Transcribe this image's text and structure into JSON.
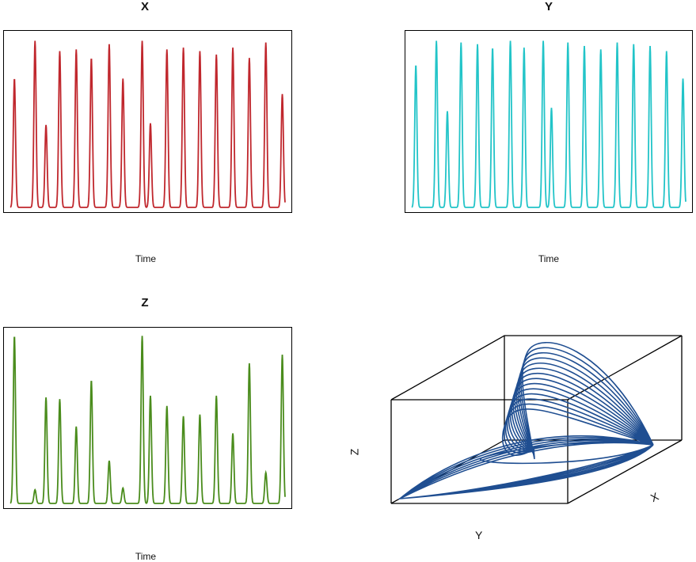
{
  "panels": {
    "x": {
      "title": "X",
      "xlabel": "Time",
      "color": "#c0272d"
    },
    "y": {
      "title": "Y",
      "xlabel": "Time",
      "color": "#22c4c8"
    },
    "z": {
      "title": "Z",
      "xlabel": "Time",
      "color": "#4a8c1c"
    },
    "phase": {
      "xlabel": "X",
      "ylabel": "Y",
      "zlabel": "Z",
      "color": "#1f4e91"
    }
  },
  "chart_data": [
    {
      "type": "line",
      "title": "X",
      "xlabel": "Time",
      "ylabel": "",
      "series": [
        {
          "values": [
            0.75,
            0.97,
            0.48,
            0.91,
            0.92,
            0.87,
            0.95,
            0.75,
            0.97,
            0.49,
            0.92,
            0.93,
            0.91,
            0.89,
            0.93,
            0.87,
            0.96,
            0.66
          ]
        }
      ],
      "peak_times": [
        0.015,
        0.09,
        0.13,
        0.18,
        0.24,
        0.295,
        0.36,
        0.41,
        0.48,
        0.51,
        0.57,
        0.63,
        0.69,
        0.75,
        0.81,
        0.87,
        0.93,
        0.99
      ],
      "ylim": [
        0,
        1
      ]
    },
    {
      "type": "line",
      "title": "Y",
      "xlabel": "Time",
      "ylabel": "",
      "series": [
        {
          "values": [
            0.83,
            0.97,
            0.56,
            0.96,
            0.95,
            0.93,
            0.97,
            0.93,
            0.97,
            0.58,
            0.96,
            0.94,
            0.92,
            0.96,
            0.95,
            0.94,
            0.91,
            0.75
          ]
        }
      ],
      "peak_times": [
        0.015,
        0.09,
        0.13,
        0.18,
        0.24,
        0.295,
        0.36,
        0.41,
        0.48,
        0.51,
        0.57,
        0.63,
        0.69,
        0.75,
        0.81,
        0.87,
        0.93,
        0.99
      ],
      "ylim": [
        0,
        1
      ]
    },
    {
      "type": "line",
      "title": "Z",
      "xlabel": "Time",
      "ylabel": "",
      "series": [
        {
          "values": [
            0.98,
            0.08,
            0.62,
            0.61,
            0.45,
            0.72,
            0.25,
            0.09,
            0.98,
            0.63,
            0.57,
            0.51,
            0.52,
            0.63,
            0.41,
            0.82,
            0.18,
            0.87
          ]
        }
      ],
      "peak_times": [
        0.015,
        0.09,
        0.13,
        0.18,
        0.24,
        0.295,
        0.36,
        0.41,
        0.48,
        0.51,
        0.57,
        0.63,
        0.69,
        0.75,
        0.81,
        0.87,
        0.93,
        0.99
      ],
      "ylim": [
        0,
        1
      ]
    },
    {
      "type": "line",
      "title": "",
      "xlabel": "X",
      "ylabel": "Y",
      "zlabel": "Z",
      "series": [
        {
          "values": []
        }
      ]
    }
  ]
}
